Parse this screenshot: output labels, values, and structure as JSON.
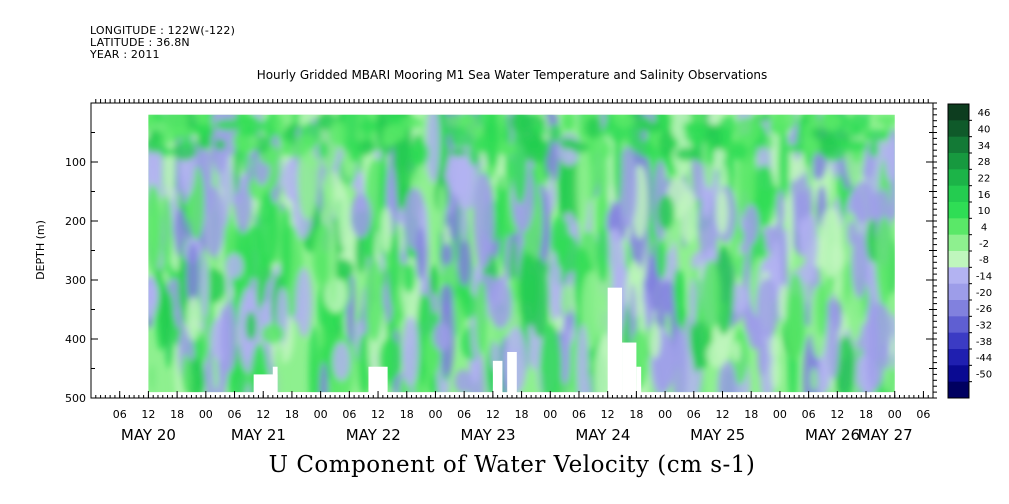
{
  "header": {
    "longitude": "LONGITUDE : 122W(-122)",
    "latitude": "LATITUDE : 36.8N",
    "year": "YEAR : 2011"
  },
  "chart_data": {
    "type": "heatmap",
    "title": "Hourly Gridded MBARI Mooring M1 Sea Water Temperature and Salinity Observations",
    "variable_label": "U Component of Water Velocity (cm s-1)",
    "ylabel": "DEPTH (m)",
    "y_ticks": [
      "100",
      "200",
      "300",
      "400",
      "500"
    ],
    "y_tick_values": [
      100,
      200,
      300,
      400,
      500
    ],
    "ylim": [
      500,
      0
    ],
    "data_depth_range": [
      20,
      490
    ],
    "x_start_hour": 0,
    "x_end_hour": 176,
    "data_time_range_hours": [
      12,
      168
    ],
    "x_hour_labels": [
      "06",
      "12",
      "18",
      "00",
      "06",
      "12",
      "18",
      "00",
      "06",
      "12",
      "18",
      "00",
      "06",
      "12",
      "18",
      "00",
      "06",
      "12",
      "18",
      "00",
      "06",
      "12",
      "18",
      "00",
      "06",
      "12",
      "18",
      "00",
      "06"
    ],
    "x_hour_values": [
      6,
      12,
      18,
      24,
      30,
      36,
      42,
      48,
      54,
      60,
      66,
      72,
      78,
      84,
      90,
      96,
      102,
      108,
      114,
      120,
      126,
      132,
      138,
      144,
      150,
      156,
      162,
      168,
      174
    ],
    "date_labels": [
      "MAY 20",
      "MAY 21",
      "MAY 22",
      "MAY 23",
      "MAY 24",
      "MAY 25",
      "MAY 26",
      "MAY 27"
    ],
    "date_label_hours": [
      12,
      35,
      59,
      83,
      107,
      131,
      155,
      166
    ],
    "colorbar": {
      "levels": [
        "46",
        "40",
        "34",
        "28",
        "22",
        "16",
        "10",
        "4",
        "-2",
        "-8",
        "-14",
        "-20",
        "-26",
        "-32",
        "-38",
        "-44",
        "-50"
      ],
      "colors": [
        "#0d3d1f",
        "#0f5a2a",
        "#137a36",
        "#17993f",
        "#1cb448",
        "#24cc50",
        "#2fdd55",
        "#5ae868",
        "#8ef08f",
        "#bff6bd",
        "#b3b3f2",
        "#9d9de9",
        "#8181de",
        "#5f5fd2",
        "#3b3bc4",
        "#1f1fb0",
        "#0a0a92",
        "#000060"
      ],
      "range": [
        -50,
        52
      ]
    },
    "missing_blocks": [
      {
        "hour_start": 34,
        "hour_end": 39,
        "depth_top": 460
      },
      {
        "hour_start": 38,
        "hour_end": 39,
        "depth_top": 447
      },
      {
        "hour_start": 58,
        "hour_end": 62,
        "depth_top": 447
      },
      {
        "hour_start": 84,
        "hour_end": 86,
        "depth_top": 437
      },
      {
        "hour_start": 87,
        "hour_end": 89,
        "depth_top": 422
      },
      {
        "hour_start": 108,
        "hour_end": 111,
        "depth_top": 313
      },
      {
        "hour_start": 111,
        "hour_end": 114,
        "depth_top": 406
      },
      {
        "hour_start": 114,
        "hour_end": 115,
        "depth_top": 447
      }
    ]
  }
}
